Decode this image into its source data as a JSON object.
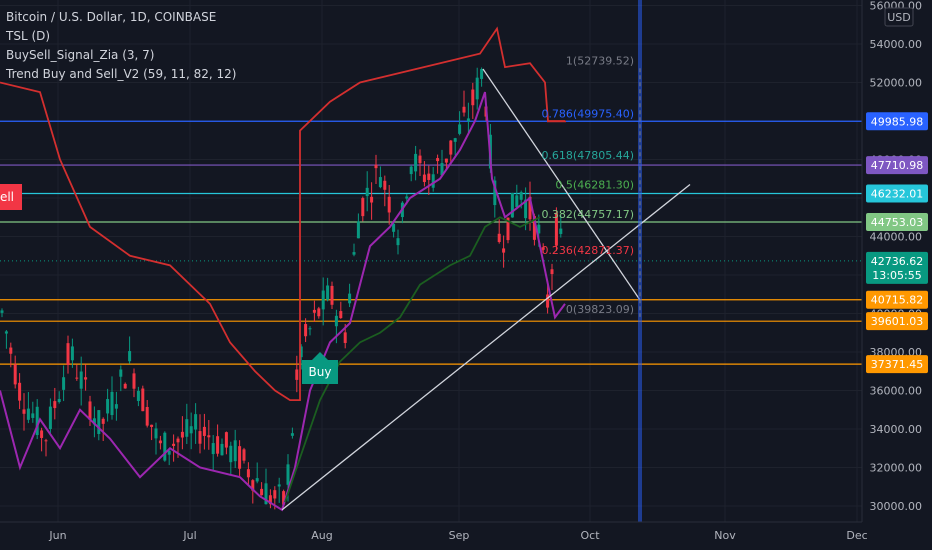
{
  "chart_data": {
    "type": "candlestick",
    "title": "Bitcoin / U.S. Dollar, 1D, COINBASE",
    "indicators": [
      "TSL (D)",
      "BuySell_Signal_Zia (3, 7)",
      "Trend Buy and Sell_V2 (59, 11, 82, 12)"
    ],
    "currency": "USD",
    "y_ticks": [
      "30000.00",
      "32000.00",
      "34000.00",
      "36000.00",
      "38000.00",
      "40000.00",
      "42000.00",
      "44000.00",
      "46000.00",
      "48000.00",
      "50000.00",
      "52000.00",
      "54000.00",
      "56000.00"
    ],
    "x_ticks": [
      "Jun",
      "Jul",
      "Aug",
      "Sep",
      "Oct",
      "Nov",
      "Dec"
    ],
    "ylim": [
      29500,
      56000
    ],
    "price_tags": [
      {
        "label": "49985.98",
        "value": 49985.98,
        "color": "#2962ff",
        "line": true
      },
      {
        "label": "47710.98",
        "value": 47710.98,
        "color": "#7e57c2",
        "line": true
      },
      {
        "label": "46232.01",
        "value": 46232.01,
        "color": "#26c6da",
        "line": true
      },
      {
        "label": "44753.03",
        "value": 44753.03,
        "color": "#81c784",
        "line": true
      },
      {
        "label": "42736.62",
        "value": 42736.62,
        "color": "#089981",
        "line": false,
        "sub": "13:05:55"
      },
      {
        "label": "40715.82",
        "value": 40715.82,
        "color": "#ff9800",
        "line": true
      },
      {
        "label": "39601.03",
        "value": 39601.03,
        "color": "#ff9800",
        "line": true
      },
      {
        "label": "37371.45",
        "value": 37371.45,
        "color": "#ff9800",
        "line": true
      }
    ],
    "fib_levels": [
      {
        "label": "1(52739.52)",
        "value": 52739.52,
        "color": "#787b86"
      },
      {
        "label": "0.786(49975.40)",
        "value": 49975.4,
        "color": "#2962ff"
      },
      {
        "label": "0.618(47805.44)",
        "value": 47805.44,
        "color": "#26a69a"
      },
      {
        "label": "0.5(46281.30)",
        "value": 46281.3,
        "color": "#4caf50"
      },
      {
        "label": "0.382(44757.17)",
        "value": 44757.17,
        "color": "#81c784"
      },
      {
        "label": "0.236(42871.37)",
        "value": 42871.37,
        "color": "#f23645"
      },
      {
        "label": "0(39823.09)",
        "value": 39823.09,
        "color": "#787b86"
      }
    ],
    "signals": [
      {
        "label": "Buy",
        "color": "#089981"
      },
      {
        "label": "Sell",
        "color": "#f23645"
      }
    ],
    "colors": {
      "up": "#089981",
      "down": "#f23645",
      "tsl": "#d32f2f",
      "signal": "#9c27b0",
      "trend": "#1b5e20",
      "background": "#131722"
    }
  }
}
